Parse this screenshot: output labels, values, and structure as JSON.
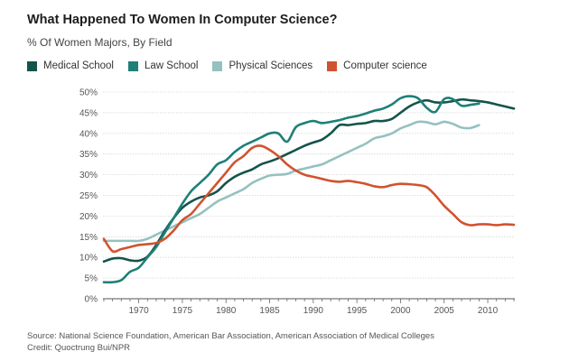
{
  "chart_data": {
    "type": "line",
    "title": "What Happened To Women In Computer Science?",
    "subtitle": "% Of Women Majors, By Field",
    "ylabel": "",
    "xlabel": "",
    "ylim": [
      0,
      50
    ],
    "xlim": [
      1965.9,
      2013.1
    ],
    "yticks": [
      0,
      5,
      10,
      15,
      20,
      25,
      30,
      35,
      40,
      45,
      50
    ],
    "ytick_labels": [
      "0%",
      "5%",
      "10%",
      "15%",
      "20%",
      "25%",
      "30%",
      "35%",
      "40%",
      "45%",
      "50%"
    ],
    "xticks": [
      1970,
      1975,
      1980,
      1985,
      1990,
      1995,
      2000,
      2005,
      2010
    ],
    "xtick_labels": [
      "1970",
      "1975",
      "1980",
      "1985",
      "1990",
      "1995",
      "2000",
      "2005",
      "2010"
    ],
    "grid": "horizontal",
    "legend_position": "top-left",
    "series": [
      {
        "name": "Medical School",
        "color": "#14544b",
        "x": [
          1966,
          1967,
          1968,
          1969,
          1970,
          1971,
          1972,
          1973,
          1974,
          1975,
          1976,
          1977,
          1978,
          1979,
          1980,
          1981,
          1982,
          1983,
          1984,
          1985,
          1986,
          1987,
          1988,
          1989,
          1990,
          1991,
          1992,
          1993,
          1994,
          1995,
          1996,
          1997,
          1998,
          1999,
          2000,
          2001,
          2002,
          2003,
          2004,
          2005,
          2006,
          2007,
          2008,
          2009,
          2010,
          2011,
          2012,
          2013
        ],
        "values": [
          9,
          9.7,
          9.8,
          9.3,
          9.2,
          10.2,
          13,
          16.5,
          19.5,
          22,
          23.5,
          24.5,
          25,
          26,
          28,
          29.5,
          30.5,
          31.3,
          32.5,
          33.2,
          34,
          35,
          36,
          37,
          37.8,
          38.5,
          40,
          42,
          42,
          42.3,
          42.5,
          43,
          43,
          43.5,
          45,
          46.5,
          47.5,
          48,
          47.5,
          47.5,
          47.8,
          48.2,
          48,
          47.8,
          47.5,
          47,
          46.5,
          46
        ]
      },
      {
        "name": "Law School",
        "color": "#1e8077",
        "x": [
          1966,
          1967,
          1968,
          1969,
          1970,
          1971,
          1972,
          1973,
          1974,
          1975,
          1976,
          1977,
          1978,
          1979,
          1980,
          1981,
          1982,
          1983,
          1984,
          1985,
          1986,
          1987,
          1988,
          1989,
          1990,
          1991,
          1992,
          1993,
          1994,
          1995,
          1996,
          1997,
          1998,
          1999,
          2000,
          2001,
          2002,
          2003,
          2004,
          2005,
          2006,
          2007,
          2008,
          2009
        ],
        "values": [
          4,
          4,
          4.5,
          6.5,
          7.5,
          10,
          12.5,
          16,
          19.5,
          23,
          26,
          28,
          30,
          32.5,
          33.5,
          35.5,
          37,
          38,
          39,
          40,
          40,
          38,
          41.5,
          42.5,
          43,
          42.5,
          42.8,
          43.2,
          43.8,
          44.2,
          44.8,
          45.5,
          46,
          47,
          48.5,
          49,
          48.5,
          46.2,
          45.2,
          48.3,
          48.3,
          46.7,
          46.9,
          47.2
        ]
      },
      {
        "name": "Physical Sciences",
        "color": "#95c1c0",
        "x": [
          1966,
          1967,
          1968,
          1969,
          1970,
          1971,
          1972,
          1973,
          1974,
          1975,
          1976,
          1977,
          1978,
          1979,
          1980,
          1981,
          1982,
          1983,
          1984,
          1985,
          1986,
          1987,
          1988,
          1989,
          1990,
          1991,
          1992,
          1993,
          1994,
          1995,
          1996,
          1997,
          1998,
          1999,
          2000,
          2001,
          2002,
          2003,
          2004,
          2005,
          2006,
          2007,
          2008,
          2009
        ],
        "values": [
          14,
          14,
          14,
          14,
          14,
          14.5,
          15.5,
          16.5,
          17.5,
          18.5,
          19.5,
          20.5,
          22,
          23.5,
          24.5,
          25.5,
          26.5,
          28,
          29,
          29.8,
          30,
          30.2,
          31,
          31.5,
          32,
          32.5,
          33.5,
          34.5,
          35.5,
          36.5,
          37.5,
          38.8,
          39.3,
          40,
          41.2,
          42,
          42.8,
          42.7,
          42.2,
          42.8,
          42.3,
          41.4,
          41.3,
          42
        ]
      },
      {
        "name": "Computer science",
        "color": "#d0532f",
        "x": [
          1966,
          1967,
          1968,
          1969,
          1970,
          1971,
          1972,
          1973,
          1974,
          1975,
          1976,
          1977,
          1978,
          1979,
          1980,
          1981,
          1982,
          1983,
          1984,
          1985,
          1986,
          1987,
          1988,
          1989,
          1990,
          1991,
          1992,
          1993,
          1994,
          1995,
          1996,
          1997,
          1998,
          1999,
          2000,
          2001,
          2002,
          2003,
          2004,
          2005,
          2006,
          2007,
          2008,
          2009,
          2010,
          2011,
          2012,
          2013
        ],
        "values": [
          14.5,
          11.5,
          12,
          12.5,
          13,
          13.2,
          13.5,
          14.5,
          16.5,
          19,
          20.5,
          23,
          25.5,
          28,
          30.5,
          33,
          34.5,
          36.5,
          37,
          36,
          34.5,
          32.5,
          31,
          30,
          29.5,
          29,
          28.5,
          28.3,
          28.5,
          28.2,
          27.8,
          27.2,
          27,
          27.5,
          27.8,
          27.7,
          27.5,
          27,
          25,
          22.5,
          20.5,
          18.5,
          17.8,
          18,
          18,
          17.8,
          18,
          17.9
        ]
      }
    ]
  },
  "footer": {
    "source": "Source: National Science Foundation, American Bar Association, American Association of Medical Colleges",
    "credit": "Credit: Quoctrung Bui/NPR"
  }
}
